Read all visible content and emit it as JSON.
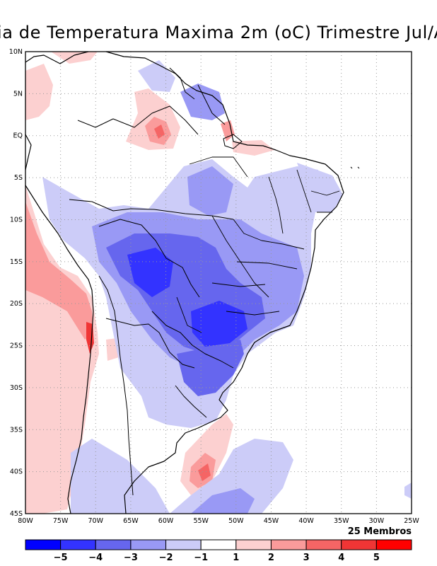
{
  "title": "ia de Temperatura Maxima 2m (oC) Trimestre Jul/A",
  "members_label": "25 Membros",
  "axes": {
    "lon_range": [
      -80,
      -25
    ],
    "lat_range": [
      -45,
      10
    ],
    "x_ticks": [
      "80W",
      "75W",
      "70W",
      "65W",
      "60W",
      "55W",
      "50W",
      "45W",
      "40W",
      "35W",
      "30W",
      "25W"
    ],
    "y_ticks": [
      "10N",
      "5N",
      "EQ",
      "5S",
      "10S",
      "15S",
      "20S",
      "25S",
      "30S",
      "35S",
      "40S",
      "45S"
    ],
    "gridlines": "dotted"
  },
  "colorbar": {
    "labels": [
      "−5",
      "−4",
      "−3",
      "−2",
      "−1",
      "1",
      "2",
      "3",
      "4",
      "5"
    ],
    "colors": [
      "#0000ff",
      "#3333ff",
      "#6666ee",
      "#9999f5",
      "#ccccf8",
      "#ffffff",
      "#fcd0d0",
      "#fa9b9b",
      "#f56565",
      "#f03535",
      "#ff0000"
    ]
  },
  "palette": {
    "warm_light": "#fcd0d0",
    "warm_mid": "#fa9b9b",
    "warm_strong": "#f56565",
    "warm_max": "#f03535",
    "cool_light": "#ccccf8",
    "cool_mid": "#9999f5",
    "cool_strong": "#6666ee",
    "cool_max": "#3333ff"
  }
}
